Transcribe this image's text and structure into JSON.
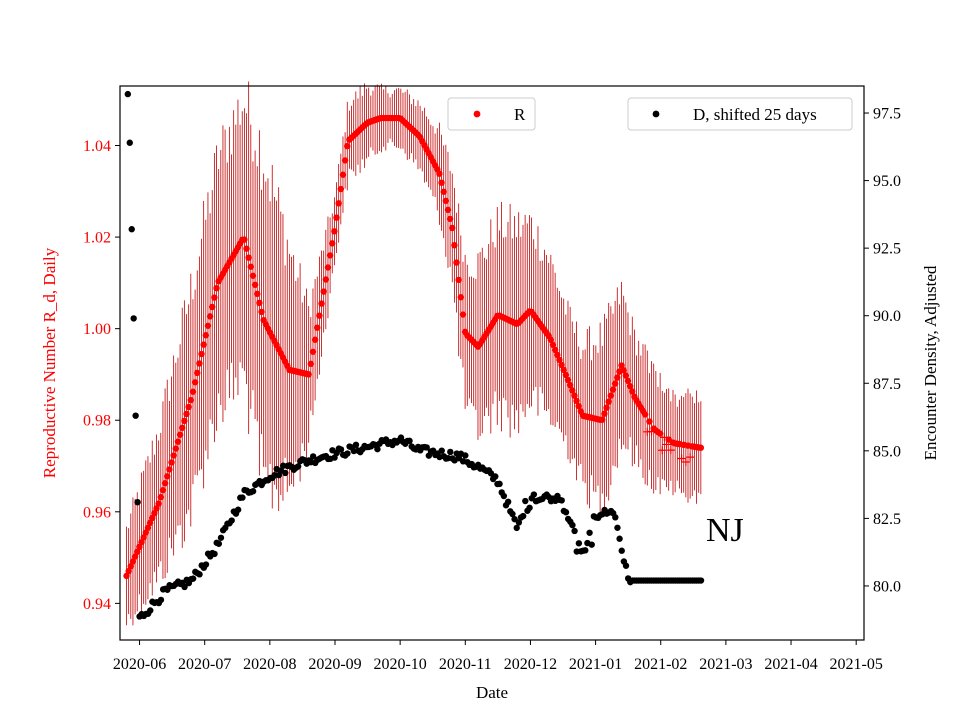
{
  "chart_data": {
    "type": "scatter",
    "state_label": "NJ",
    "xlabel": "Date",
    "ylabel_left": "Reproductive Number R_d, Daily",
    "ylabel_right": "Encounter Density, Adjusted",
    "x_ticks": [
      "2020-06",
      "2020-07",
      "2020-08",
      "2020-09",
      "2020-10",
      "2020-11",
      "2020-12",
      "2021-01",
      "2021-02",
      "2021-03",
      "2021-04",
      "2021-05"
    ],
    "x_range_months": [
      -0.3,
      11.12
    ],
    "ylim_left": [
      0.932,
      1.053
    ],
    "y_ticks_left": [
      "0.94",
      "0.96",
      "0.98",
      "1.00",
      "1.02",
      "1.04"
    ],
    "ylim_right": [
      78.0,
      98.5
    ],
    "y_ticks_right": [
      "80.0",
      "82.5",
      "85.0",
      "87.5",
      "90.0",
      "92.5",
      "95.0",
      "97.5"
    ],
    "legend": {
      "r_label": "R",
      "d_label": "D, shifted 25 days",
      "r_placement": "top-center",
      "d_placement": "top-right"
    },
    "colors": {
      "r_series": "#ff0000",
      "r_error": "#c00000",
      "d_series": "#000000"
    },
    "series": [
      {
        "name": "R",
        "axis": "left",
        "style": "dots-with-errorbars",
        "range_months": [
          -0.2,
          8.62
        ],
        "knots_x": [
          -0.2,
          0.3,
          0.8,
          1.2,
          1.6,
          1.9,
          2.3,
          2.6,
          3.0,
          3.2,
          3.5,
          3.7,
          4.0,
          4.3,
          4.6,
          4.8,
          5.0,
          5.2,
          5.5,
          5.8,
          6.0,
          6.3,
          6.6,
          6.8,
          7.1,
          7.4,
          7.6,
          7.9,
          8.2,
          8.6
        ],
        "knots_y": [
          0.946,
          0.962,
          0.985,
          1.01,
          1.02,
          1.002,
          0.991,
          0.99,
          1.022,
          1.041,
          1.045,
          1.046,
          1.046,
          1.042,
          1.034,
          1.022,
          0.999,
          0.996,
          1.003,
          1.001,
          1.004,
          0.998,
          0.988,
          0.981,
          0.98,
          0.992,
          0.985,
          0.978,
          0.975,
          0.974
        ],
        "err_knots_y": [
          0.01,
          0.016,
          0.024,
          0.027,
          0.03,
          0.036,
          0.026,
          0.014,
          0.007,
          0.008,
          0.008,
          0.006,
          0.006,
          0.007,
          0.009,
          0.012,
          0.016,
          0.018,
          0.02,
          0.021,
          0.019,
          0.017,
          0.014,
          0.015,
          0.018,
          0.016,
          0.013,
          0.012,
          0.01,
          0.01
        ]
      },
      {
        "name": "D, shifted 25 days",
        "axis": "right",
        "style": "dots",
        "early_points": [
          [
            -0.18,
            98.2
          ],
          [
            -0.15,
            96.4
          ],
          [
            -0.12,
            93.2
          ],
          [
            -0.09,
            89.9
          ],
          [
            -0.06,
            86.3
          ],
          [
            -0.03,
            83.1
          ]
        ],
        "range_months": [
          0.0,
          8.62
        ],
        "knots_x": [
          0.0,
          0.4,
          0.8,
          1.2,
          1.6,
          2.0,
          2.4,
          2.8,
          3.2,
          3.6,
          4.0,
          4.3,
          4.6,
          4.9,
          5.2,
          5.5,
          5.8,
          5.95,
          6.2,
          6.5,
          6.8,
          7.0,
          7.2,
          7.3,
          7.5,
          7.7,
          7.8,
          8.0,
          8.62
        ],
        "knots_y": [
          78.8,
          79.8,
          80.2,
          81.5,
          83.4,
          84.1,
          84.5,
          84.8,
          85.0,
          85.2,
          85.4,
          85.0,
          84.9,
          84.8,
          84.4,
          83.9,
          82.1,
          83.2,
          83.4,
          83.1,
          81.1,
          82.6,
          82.8,
          82.6,
          80.2,
          80.2,
          80.2,
          80.2,
          80.2
        ],
        "jitter": 0.35
      }
    ]
  }
}
